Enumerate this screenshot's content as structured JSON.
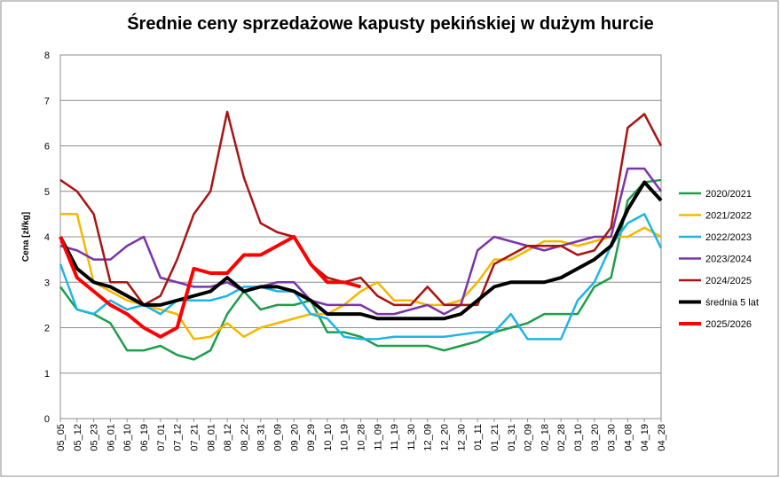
{
  "chart_data": {
    "type": "line",
    "title": "Średnie ceny sprzedażowe kapusty pekińskiej w dużym hurcie",
    "y_label": "Cena [zł/kg]",
    "categories": [
      "05_05",
      "05_12",
      "05_23",
      "06_01",
      "06_10",
      "06_19",
      "07_01",
      "07_12",
      "07_21",
      "08_01",
      "08_12",
      "08_22",
      "08_31",
      "09_09",
      "09_20",
      "09_29",
      "10_10",
      "10_19",
      "10_28",
      "11_09",
      "11_19",
      "11_30",
      "12_09",
      "12_20",
      "12_30",
      "01_11",
      "01_21",
      "01_31",
      "02_09",
      "02_18",
      "02_28",
      "03_10",
      "03_20",
      "03_30",
      "04_08",
      "04_19",
      "04_28"
    ],
    "ylim": [
      0,
      8
    ],
    "yticks": [
      0,
      1,
      2,
      3,
      4,
      5,
      6,
      7,
      8
    ],
    "legend": "right",
    "series": [
      {
        "name": "2020/2021",
        "color": "#1f9e4c",
        "width": 2.5,
        "values": [
          2.9,
          2.4,
          2.3,
          2.1,
          1.5,
          1.5,
          1.6,
          1.4,
          1.3,
          1.5,
          2.3,
          2.8,
          2.4,
          2.5,
          2.5,
          2.6,
          1.9,
          1.9,
          1.8,
          1.6,
          1.6,
          1.6,
          1.6,
          1.5,
          1.6,
          1.7,
          1.9,
          2.0,
          2.1,
          2.3,
          2.3,
          2.3,
          2.9,
          3.1,
          4.8,
          5.2,
          5.25
        ]
      },
      {
        "name": "2021/2022",
        "color": "#f5b800",
        "width": 2.5,
        "values": [
          4.5,
          4.5,
          3.0,
          2.8,
          2.6,
          2.5,
          2.4,
          2.3,
          1.75,
          1.8,
          2.1,
          1.8,
          2.0,
          2.1,
          2.2,
          2.3,
          2.3,
          2.5,
          2.8,
          3.0,
          2.6,
          2.6,
          2.5,
          2.5,
          2.6,
          3.0,
          3.5,
          3.5,
          3.7,
          3.9,
          3.9,
          3.8,
          3.9,
          4.0,
          4.0,
          4.2,
          4.0
        ]
      },
      {
        "name": "2022/2023",
        "color": "#1fb4e6",
        "width": 2.5,
        "values": [
          3.4,
          2.4,
          2.3,
          2.6,
          2.4,
          2.5,
          2.3,
          2.6,
          2.6,
          2.6,
          2.7,
          2.9,
          2.9,
          2.8,
          2.8,
          2.3,
          2.2,
          1.8,
          1.75,
          1.75,
          1.8,
          1.8,
          1.8,
          1.8,
          1.85,
          1.9,
          1.9,
          2.3,
          1.75,
          1.75,
          1.75,
          2.6,
          3.0,
          3.8,
          4.3,
          4.5,
          3.75
        ]
      },
      {
        "name": "2023/2024",
        "color": "#7a35a8",
        "width": 2.5,
        "values": [
          3.8,
          3.7,
          3.5,
          3.5,
          3.8,
          4.0,
          3.1,
          3.0,
          2.9,
          2.9,
          3.0,
          2.8,
          2.9,
          3.0,
          3.0,
          2.6,
          2.5,
          2.5,
          2.5,
          2.3,
          2.3,
          2.4,
          2.5,
          2.3,
          2.5,
          3.7,
          4.0,
          3.9,
          3.8,
          3.7,
          3.8,
          3.9,
          4.0,
          4.0,
          5.5,
          5.5,
          5.0
        ]
      },
      {
        "name": "2024/2025",
        "color": "#a81414",
        "width": 2.5,
        "values": [
          5.25,
          5.0,
          4.5,
          3.0,
          3.0,
          2.5,
          2.7,
          3.5,
          4.5,
          5.0,
          6.75,
          5.3,
          4.3,
          4.1,
          4.0,
          3.4,
          3.1,
          3.0,
          3.1,
          2.7,
          2.5,
          2.5,
          2.9,
          2.5,
          2.5,
          2.5,
          3.4,
          3.6,
          3.8,
          3.8,
          3.8,
          3.6,
          3.7,
          4.2,
          6.4,
          6.7,
          6.0
        ]
      },
      {
        "name": "średnia 5 lat",
        "color": "#000000",
        "width": 4,
        "values": [
          4.0,
          3.3,
          3.0,
          2.9,
          2.7,
          2.5,
          2.5,
          2.6,
          2.7,
          2.8,
          3.1,
          2.8,
          2.9,
          2.9,
          2.8,
          2.6,
          2.3,
          2.3,
          2.3,
          2.2,
          2.2,
          2.2,
          2.2,
          2.2,
          2.3,
          2.6,
          2.9,
          3.0,
          3.0,
          3.0,
          3.1,
          3.3,
          3.5,
          3.8,
          4.6,
          5.2,
          4.8
        ]
      },
      {
        "name": "2025/2026",
        "color": "#ff0000",
        "width": 4,
        "values": [
          4.0,
          3.1,
          2.8,
          2.5,
          2.3,
          2.0,
          1.8,
          2.0,
          3.3,
          3.2,
          3.2,
          3.6,
          3.6,
          3.8,
          4.0,
          3.4,
          3.0,
          3.0,
          2.9,
          null,
          null,
          null,
          null,
          null,
          null,
          null,
          null,
          null,
          null,
          null,
          null,
          null,
          null,
          null,
          null,
          null,
          null
        ]
      }
    ]
  }
}
